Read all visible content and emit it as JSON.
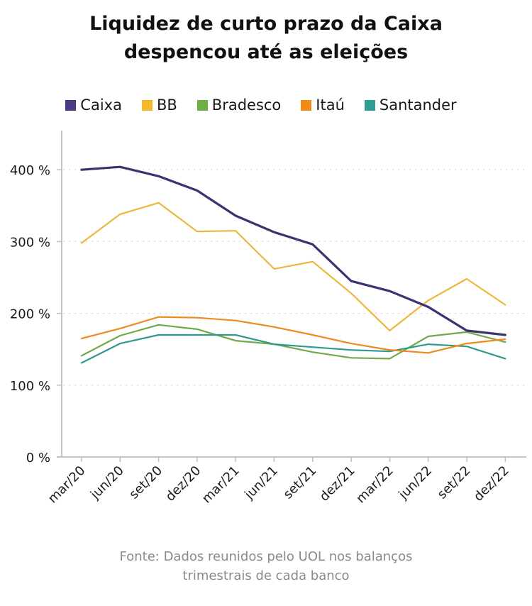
{
  "title_lines": [
    "Liquidez de curto prazo da Caixa",
    "despencou até as eleições"
  ],
  "footer_lines": [
    "Fonte: Dados reunidos pelo UOL nos balanços",
    "trimestrais de cada banco"
  ],
  "chart_data": {
    "type": "line",
    "title": "Liquidez de curto prazo da Caixa despencou até as eleições",
    "xlabel": "",
    "ylabel": "",
    "x": [
      "mar/20",
      "jun/20",
      "set/20",
      "dez/20",
      "mar/21",
      "jun/21",
      "set/21",
      "dez/21",
      "mar/22",
      "jun/22",
      "set/22",
      "dez/22"
    ],
    "ylim": [
      0,
      450
    ],
    "yticks": [
      0,
      100,
      200,
      300,
      400
    ],
    "ytick_labels": [
      "0 %",
      "100 %",
      "200 %",
      "300 %",
      "400 %"
    ],
    "grid": "horizontal dotted",
    "legend_position": "top-center",
    "series": [
      {
        "name": "Caixa",
        "color": "#3d3270",
        "swatch": "#4b3a82",
        "width": 3.2,
        "values": [
          400,
          404,
          391,
          371,
          336,
          313,
          296,
          245,
          231,
          209,
          176,
          170
        ]
      },
      {
        "name": "BB",
        "color": "#ebb73c",
        "swatch": "#f5b829",
        "width": 2.2,
        "values": [
          298,
          338,
          354,
          314,
          315,
          262,
          272,
          228,
          176,
          218,
          248,
          212
        ]
      },
      {
        "name": "Bradesco",
        "color": "#6faa48",
        "swatch": "#6fae45",
        "width": 2.2,
        "values": [
          141,
          169,
          184,
          178,
          162,
          157,
          146,
          138,
          137,
          168,
          174,
          160
        ]
      },
      {
        "name": "Itaú",
        "color": "#ef8a1e",
        "swatch": "#f28a17",
        "width": 2.2,
        "values": [
          165,
          179,
          195,
          194,
          190,
          181,
          170,
          158,
          149,
          145,
          158,
          164
        ]
      },
      {
        "name": "Santander",
        "color": "#2e9a8f",
        "swatch": "#2e9e93",
        "width": 2.2,
        "values": [
          131,
          158,
          170,
          170,
          170,
          157,
          153,
          149,
          147,
          157,
          154,
          137
        ]
      }
    ]
  }
}
